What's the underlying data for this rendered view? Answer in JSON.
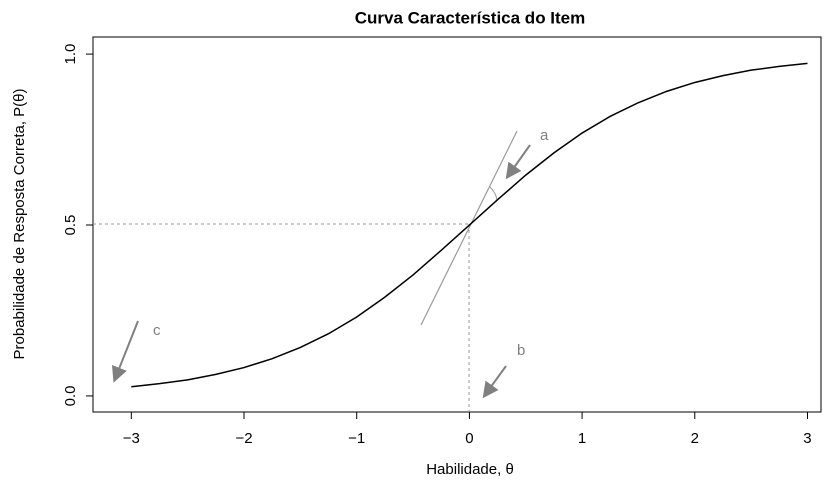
{
  "chart_data": {
    "type": "line",
    "title": "Curva Característica do Item",
    "x_label": "Habilidade, θ",
    "y_label": "Probabilidade de Resposta Correta, P(θ)",
    "annotations": [
      "a",
      "b",
      "c"
    ],
    "x": [
      -3,
      -2.75,
      -2.5,
      -2.25,
      -2,
      -1.75,
      -1.5,
      -1.25,
      -1,
      -0.75,
      -0.5,
      -0.25,
      0,
      0.25,
      0.5,
      0.75,
      1,
      1.25,
      1.5,
      1.75,
      2,
      2.25,
      2.5,
      2.75,
      3
    ],
    "values": [
      0.027,
      0.036,
      0.047,
      0.063,
      0.083,
      0.109,
      0.142,
      0.182,
      0.231,
      0.289,
      0.354,
      0.426,
      0.5,
      0.574,
      0.646,
      0.711,
      0.769,
      0.818,
      0.858,
      0.891,
      0.917,
      0.937,
      0.953,
      0.964,
      0.973
    ],
    "color": "#000000",
    "xlim": [
      -3.34,
      3.12
    ],
    "ylim": [
      -0.047,
      1.05
    ],
    "xticks": [
      {
        "value": -3,
        "label": "−3"
      },
      {
        "value": -2,
        "label": "−2"
      },
      {
        "value": -1,
        "label": "−1"
      },
      0,
      1,
      2,
      3
    ],
    "yticks": [
      {
        "value": 0,
        "label": "0.0"
      },
      0.5,
      {
        "value": 1,
        "label": "1.0"
      }
    ]
  }
}
